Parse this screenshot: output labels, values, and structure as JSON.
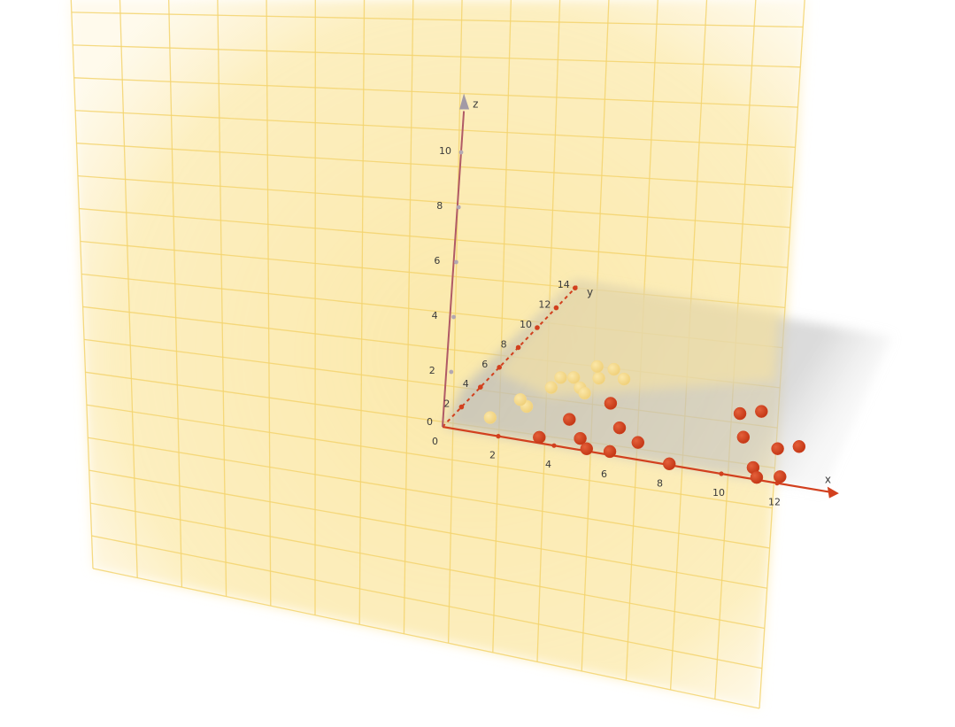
{
  "chart_data": {
    "type": "scatter",
    "projection": "3d",
    "axes": {
      "x": {
        "label": "x",
        "range": [
          0,
          13
        ],
        "ticks": [
          "2",
          "4",
          "6",
          "8",
          "10",
          "12"
        ]
      },
      "y": {
        "label": "y",
        "range": [
          0,
          14
        ],
        "ticks": [
          "2",
          "4",
          "6",
          "8",
          "10",
          "12",
          "14"
        ]
      },
      "z": {
        "label": "z",
        "range": [
          0,
          11
        ],
        "ticks": [
          "0",
          "2",
          "4",
          "6",
          "8",
          "10"
        ]
      },
      "origin_label": "0"
    },
    "planes": [
      {
        "kind": "vertical",
        "color": "#fbe7a0",
        "grid_color": "#f5d878"
      },
      {
        "kind": "floor",
        "color": "#c8c8c8"
      }
    ],
    "series": [
      {
        "color": "#f5d98c",
        "points": [
          [
            1.2,
            1.5,
            0
          ],
          [
            2.0,
            3.0,
            0
          ],
          [
            1.6,
            3.5,
            0
          ],
          [
            2.2,
            6.0,
            0
          ],
          [
            2.6,
            6.2,
            0
          ],
          [
            2.2,
            5.0,
            0
          ],
          [
            3.1,
            5.4,
            0
          ],
          [
            3.4,
            5.0,
            0
          ],
          [
            3.4,
            6.5,
            0
          ],
          [
            3.0,
            7.5,
            0
          ],
          [
            3.6,
            7.5,
            0
          ],
          [
            4.2,
            6.8,
            0
          ]
        ]
      },
      {
        "color": "#d2401e",
        "points": [
          [
            3.3,
            0.5,
            0
          ],
          [
            3.7,
            2.5,
            0
          ],
          [
            4.5,
            4.5,
            0
          ],
          [
            4.6,
            1.0,
            0
          ],
          [
            5.1,
            0.2,
            0
          ],
          [
            5.5,
            2.5,
            0
          ],
          [
            5.9,
            0.3,
            0
          ],
          [
            6.5,
            1.5,
            0
          ],
          [
            8.1,
            0.1,
            0
          ],
          [
            8.8,
            5.5,
            0
          ],
          [
            9.4,
            6.0,
            0
          ],
          [
            9.6,
            3.5,
            0
          ],
          [
            10.8,
            1.0,
            0
          ],
          [
            11.2,
            0.2,
            0
          ],
          [
            11.0,
            3.0,
            0
          ],
          [
            11.6,
            3.5,
            0
          ],
          [
            11.9,
            0.6,
            0
          ]
        ]
      }
    ]
  }
}
